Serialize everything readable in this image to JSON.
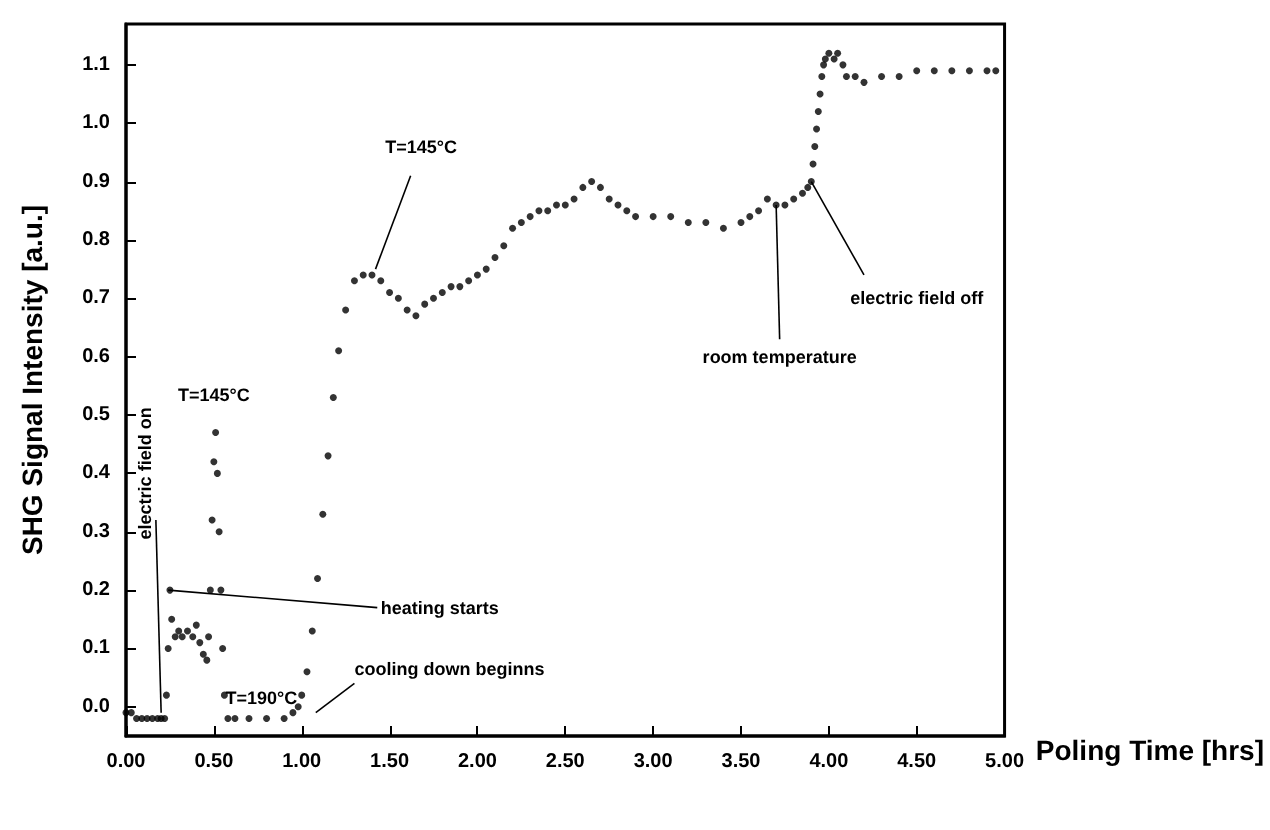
{
  "chart_data": {
    "type": "scatter",
    "xlabel": "Poling Time [hrs]",
    "ylabel": "SHG Signal Intensity [a.u.]",
    "x": [
      0.0,
      0.03,
      0.06,
      0.09,
      0.12,
      0.15,
      0.18,
      0.2,
      0.22,
      0.23,
      0.24,
      0.25,
      0.26,
      0.28,
      0.3,
      0.32,
      0.35,
      0.38,
      0.4,
      0.42,
      0.44,
      0.46,
      0.47,
      0.48,
      0.49,
      0.5,
      0.51,
      0.52,
      0.53,
      0.54,
      0.55,
      0.56,
      0.58,
      0.62,
      0.7,
      0.8,
      0.9,
      0.95,
      0.98,
      1.0,
      1.03,
      1.06,
      1.09,
      1.12,
      1.15,
      1.18,
      1.21,
      1.25,
      1.3,
      1.35,
      1.4,
      1.45,
      1.5,
      1.55,
      1.6,
      1.65,
      1.7,
      1.75,
      1.8,
      1.85,
      1.9,
      1.95,
      2.0,
      2.05,
      2.1,
      2.15,
      2.2,
      2.25,
      2.3,
      2.35,
      2.4,
      2.45,
      2.5,
      2.55,
      2.6,
      2.65,
      2.7,
      2.75,
      2.8,
      2.85,
      2.9,
      3.0,
      3.1,
      3.2,
      3.3,
      3.4,
      3.5,
      3.55,
      3.6,
      3.65,
      3.7,
      3.75,
      3.8,
      3.85,
      3.88,
      3.9,
      3.91,
      3.92,
      3.93,
      3.94,
      3.95,
      3.96,
      3.97,
      3.98,
      4.0,
      4.03,
      4.05,
      4.08,
      4.1,
      4.15,
      4.2,
      4.3,
      4.4,
      4.5,
      4.6,
      4.7,
      4.8,
      4.9,
      4.95
    ],
    "values": [
      -0.01,
      -0.01,
      -0.02,
      -0.02,
      -0.02,
      -0.02,
      -0.02,
      -0.02,
      -0.02,
      0.02,
      0.1,
      0.2,
      0.15,
      0.12,
      0.13,
      0.12,
      0.13,
      0.12,
      0.14,
      0.11,
      0.09,
      0.08,
      0.12,
      0.2,
      0.32,
      0.42,
      0.47,
      0.4,
      0.3,
      0.2,
      0.1,
      0.02,
      -0.02,
      -0.02,
      -0.02,
      -0.02,
      -0.02,
      -0.01,
      0.0,
      0.02,
      0.06,
      0.13,
      0.22,
      0.33,
      0.43,
      0.53,
      0.61,
      0.68,
      0.73,
      0.74,
      0.74,
      0.73,
      0.71,
      0.7,
      0.68,
      0.67,
      0.69,
      0.7,
      0.71,
      0.72,
      0.72,
      0.73,
      0.74,
      0.75,
      0.77,
      0.79,
      0.82,
      0.83,
      0.84,
      0.85,
      0.85,
      0.86,
      0.86,
      0.87,
      0.89,
      0.9,
      0.89,
      0.87,
      0.86,
      0.85,
      0.84,
      0.84,
      0.84,
      0.83,
      0.83,
      0.82,
      0.83,
      0.84,
      0.85,
      0.87,
      0.86,
      0.86,
      0.87,
      0.88,
      0.89,
      0.9,
      0.93,
      0.96,
      0.99,
      1.02,
      1.05,
      1.08,
      1.1,
      1.11,
      1.12,
      1.11,
      1.12,
      1.1,
      1.08,
      1.08,
      1.07,
      1.08,
      1.08,
      1.09,
      1.09,
      1.09,
      1.09,
      1.09,
      1.09
    ],
    "color": "#000000",
    "marker": "circle",
    "xlim": [
      0,
      5
    ],
    "ylim": [
      -0.05,
      1.17
    ],
    "xticks": [
      {
        "value": 0,
        "label": "0.00"
      },
      {
        "value": 0.5,
        "label": "0.50"
      },
      {
        "value": 1,
        "label": "1.00"
      },
      {
        "value": 1.5,
        "label": "1.50"
      },
      {
        "value": 2,
        "label": "2.00"
      },
      {
        "value": 2.5,
        "label": "2.50"
      },
      {
        "value": 3,
        "label": "3.00"
      },
      {
        "value": 3.5,
        "label": "3.50"
      },
      {
        "value": 4,
        "label": "4.00"
      },
      {
        "value": 4.5,
        "label": "4.50"
      },
      {
        "value": 5,
        "label": "5.00"
      }
    ],
    "yticks": [
      {
        "value": 0,
        "label": "0.0"
      },
      {
        "value": 0.1,
        "label": "0.1"
      },
      {
        "value": 0.2,
        "label": "0.2"
      },
      {
        "value": 0.3,
        "label": "0.3"
      },
      {
        "value": 0.4,
        "label": "0.4"
      },
      {
        "value": 0.5,
        "label": "0.5"
      },
      {
        "value": 0.6,
        "label": "0.6"
      },
      {
        "value": 0.7,
        "label": "0.7"
      },
      {
        "value": 0.8,
        "label": "0.8"
      },
      {
        "value": 0.9,
        "label": "0.9"
      },
      {
        "value": 1.0,
        "label": "1.0"
      },
      {
        "value": 1.1,
        "label": "1.1"
      }
    ],
    "annotations": [
      {
        "text": "electric field on",
        "x": 0.2,
        "y": -0.01
      },
      {
        "text": "T=145°C",
        "x": 0.51,
        "y": 0.47
      },
      {
        "text": "heating starts",
        "x": 0.24,
        "y": 0.2
      },
      {
        "text": "T=190°C",
        "x": 0.75,
        "y": -0.02
      },
      "cooling down beginns",
      {
        "text": "T=145°C",
        "x": 1.42,
        "y": 0.75
      },
      {
        "text": "room temperature",
        "x": 3.7,
        "y": 0.86
      },
      {
        "text": "electric field off",
        "x": 3.9,
        "y": 0.9
      }
    ]
  }
}
